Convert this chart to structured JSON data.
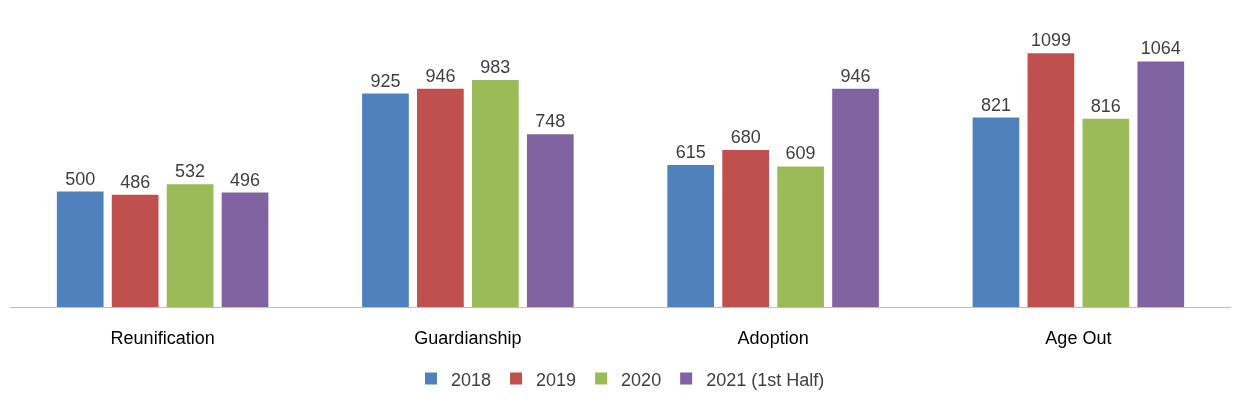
{
  "chart_data": {
    "type": "bar",
    "categories": [
      "Reunification",
      "Guardianship",
      "Adoption",
      "Age Out"
    ],
    "series": [
      {
        "name": "2018",
        "color": "#4f81bd",
        "values": [
          500,
          925,
          615,
          821
        ]
      },
      {
        "name": "2019",
        "color": "#c0504d",
        "values": [
          486,
          946,
          680,
          1099
        ]
      },
      {
        "name": "2020",
        "color": "#9bbb59",
        "values": [
          532,
          983,
          609,
          816
        ]
      },
      {
        "name": "2021 (1st Half)",
        "color": "#8064a2",
        "values": [
          496,
          748,
          946,
          1064
        ]
      }
    ],
    "data_labels": true,
    "legend": "bottom"
  }
}
